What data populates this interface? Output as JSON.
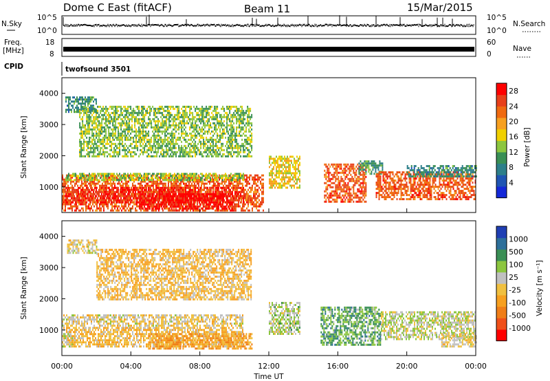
{
  "header": {
    "station": "Dome C East (fitACF)",
    "beam": "Beam 11",
    "date": "15/Mar/2015"
  },
  "top_panels": {
    "nsky_label": "N.Sky",
    "nsky_ticks": [
      "10^5",
      "10^0"
    ],
    "nsearch_label": "N.Search",
    "nsearch_ticks": [
      "10^5",
      "10^0"
    ],
    "freq_label_1": "Freq.",
    "freq_label_2": "[MHz]",
    "freq_ticks": [
      "18",
      "8"
    ],
    "nave_label": "Nave",
    "nave_ticks": [
      "60",
      "0"
    ],
    "cpid_label": "CPID",
    "cpid_value": "twofsound 3501"
  },
  "chart_data": [
    {
      "type": "heatmap",
      "name": "power",
      "ylabel": "Slant Range [km]",
      "xlabel": "Time UT",
      "x_ticks": [
        "00:00",
        "04:00",
        "08:00",
        "12:00",
        "16:00",
        "20:00",
        "00:00"
      ],
      "y_ticks": [
        "1000",
        "2000",
        "3000",
        "4000"
      ],
      "xlim_hours": [
        0,
        24
      ],
      "ylim_km": [
        180,
        4500
      ],
      "colorbar_label": "Power [dB]",
      "colorbar_ticks": [
        "4",
        "8",
        "12",
        "16",
        "20",
        "24",
        "28"
      ],
      "colorbar_range": [
        0,
        30
      ],
      "colors": [
        "#1428d8",
        "#1f55b3",
        "#2d7f8a",
        "#3a8f55",
        "#8cc63f",
        "#f0d000",
        "#f7a020",
        "#f06a10",
        "#e8401a",
        "#ff0000"
      ],
      "regions": [
        {
          "t": [
            0.0,
            11.7
          ],
          "r": [
            250,
            1400
          ],
          "v": 24
        },
        {
          "t": [
            0.2,
            10.5
          ],
          "r": [
            1200,
            1450
          ],
          "v": 14
        },
        {
          "t": [
            0.2,
            10.5
          ],
          "r": [
            500,
            1000
          ],
          "v": 27
        },
        {
          "t": [
            4.5,
            10.0
          ],
          "r": [
            300,
            800
          ],
          "v": 29
        },
        {
          "t": [
            12.0,
            13.8
          ],
          "r": [
            1000,
            2000
          ],
          "v": 17
        },
        {
          "t": [
            15.2,
            17.6
          ],
          "r": [
            500,
            1750
          ],
          "v": 24
        },
        {
          "t": [
            17.2,
            18.6
          ],
          "r": [
            1450,
            1850
          ],
          "v": 10
        },
        {
          "t": [
            18.2,
            24.0
          ],
          "r": [
            600,
            1500
          ],
          "v": 24
        },
        {
          "t": [
            20.0,
            24.0
          ],
          "r": [
            1350,
            1700
          ],
          "v": 9
        },
        {
          "t": [
            0.2,
            2.0
          ],
          "r": [
            3400,
            3900
          ],
          "v": 9
        },
        {
          "t": [
            1.0,
            11.0
          ],
          "r": [
            2000,
            3600
          ],
          "v": 13
        }
      ]
    },
    {
      "type": "heatmap",
      "name": "velocity",
      "ylabel": "Slant Range [km]",
      "xlabel": "Time UT",
      "x_ticks": [
        "00:00",
        "04:00",
        "08:00",
        "12:00",
        "16:00",
        "20:00",
        "00:00"
      ],
      "y_ticks": [
        "1000",
        "2000",
        "3000",
        "4000"
      ],
      "xlim_hours": [
        0,
        24
      ],
      "ylim_km": [
        180,
        4500
      ],
      "colorbar_label": "Velocity [m s⁻¹]",
      "colorbar_ticks": [
        "1000",
        "500",
        "100",
        "25",
        "-25",
        "-100",
        "-500",
        "-1000"
      ],
      "colorbar_range": [
        -1000,
        1000
      ],
      "colors": [
        "#ff0000",
        "#f0501a",
        "#f07e18",
        "#f7a020",
        "#f0c040",
        "#c0c0c0",
        "#8cc63f",
        "#3a8f55",
        "#2d6f9a",
        "#1f3fb3"
      ],
      "regions": [
        {
          "t": [
            0.0,
            10.5
          ],
          "r": [
            450,
            1100
          ],
          "v": -150
        },
        {
          "t": [
            0.0,
            10.5
          ],
          "r": [
            1150,
            1500
          ],
          "v": 0
        },
        {
          "t": [
            5.0,
            11.0
          ],
          "r": [
            400,
            900
          ],
          "v": -300
        },
        {
          "t": [
            0.0,
            0.6
          ],
          "r": [
            450,
            900
          ],
          "v": 150
        },
        {
          "t": [
            12.0,
            13.8
          ],
          "r": [
            900,
            1900
          ],
          "v": 180
        },
        {
          "t": [
            15.0,
            18.5
          ],
          "r": [
            500,
            1750
          ],
          "v": 400
        },
        {
          "t": [
            18.5,
            24.0
          ],
          "r": [
            700,
            1600
          ],
          "v": 150
        },
        {
          "t": [
            22.0,
            24.0
          ],
          "r": [
            500,
            900
          ],
          "v": -20
        },
        {
          "t": [
            0.3,
            2.0
          ],
          "r": [
            3500,
            3900
          ],
          "v": 0
        },
        {
          "t": [
            2.0,
            11.0
          ],
          "r": [
            2000,
            3600
          ],
          "v": -150
        }
      ]
    }
  ]
}
